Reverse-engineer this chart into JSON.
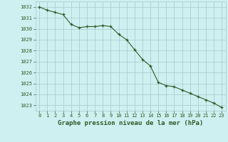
{
  "x": [
    0,
    1,
    2,
    3,
    4,
    5,
    6,
    7,
    8,
    9,
    10,
    11,
    12,
    13,
    14,
    15,
    16,
    17,
    18,
    19,
    20,
    21,
    22,
    23
  ],
  "y": [
    1032.0,
    1031.7,
    1031.5,
    1031.3,
    1030.4,
    1030.1,
    1030.2,
    1030.2,
    1030.3,
    1030.2,
    1029.5,
    1029.0,
    1028.1,
    1027.2,
    1026.6,
    1025.1,
    1024.8,
    1024.7,
    1024.4,
    1024.1,
    1023.8,
    1023.5,
    1023.2,
    1022.8
  ],
  "line_color": "#2d5a27",
  "marker": "+",
  "bg_color": "#cff0f0",
  "grid_color": "#a8c8c8",
  "xlabel": "Graphe pression niveau de la mer (hPa)",
  "xlabel_color": "#2d5a27",
  "tick_color": "#2d5a27",
  "ylim": [
    1022.5,
    1032.5
  ],
  "xlim": [
    -0.5,
    23.5
  ],
  "yticks": [
    1023,
    1024,
    1025,
    1026,
    1027,
    1028,
    1029,
    1030,
    1031,
    1032
  ],
  "xticks": [
    0,
    1,
    2,
    3,
    4,
    5,
    6,
    7,
    8,
    9,
    10,
    11,
    12,
    13,
    14,
    15,
    16,
    17,
    18,
    19,
    20,
    21,
    22,
    23
  ],
  "figsize": [
    3.2,
    2.0
  ],
  "dpi": 100
}
